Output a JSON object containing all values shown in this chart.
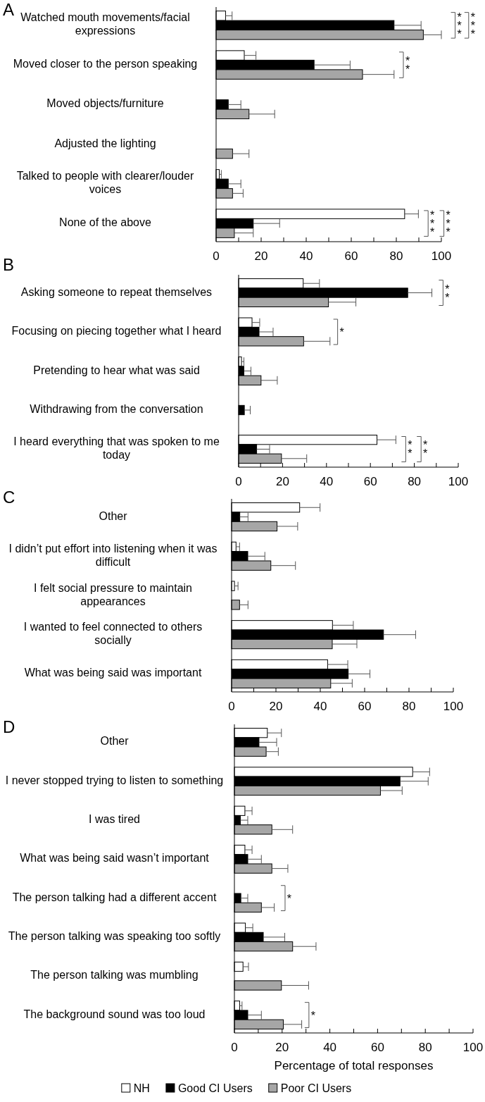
{
  "chart_data": [
    {
      "type": "bar",
      "orientation": "horizontal",
      "title": "A",
      "categories": [
        "Watched mouth movements/facial expressions",
        "Moved closer to the person speaking",
        "Moved objects/furniture",
        "Adjusted the lighting",
        "Talked to people with clearer/louder voices",
        "None of the above"
      ],
      "series": [
        {
          "color": "#ffffff",
          "values": [
            4.2,
            12.5,
            0,
            0,
            1.4,
            83.7
          ],
          "errors": [
            [
              4.2,
              7.1
            ],
            [
              12.5,
              17.7
            ],
            null,
            null,
            [
              1.4,
              2.3
            ],
            [
              83.7,
              89.8
            ]
          ]
        },
        {
          "color": "#000000",
          "values": [
            79,
            43.5,
            5.4,
            0,
            5.4,
            16.5
          ],
          "errors": [
            [
              79,
              91
            ],
            [
              43.5,
              59.5
            ],
            [
              5.4,
              11
            ],
            null,
            [
              5.4,
              11
            ],
            [
              16.5,
              28.2
            ]
          ]
        },
        {
          "color": "#a6a6a6",
          "values": [
            92,
            65,
            14.6,
            7.3,
            7.3,
            8.1
          ],
          "errors": [
            [
              92,
              100
            ],
            [
              65,
              79
            ],
            [
              14.6,
              26
            ],
            [
              7.3,
              14.6
            ],
            [
              7.3,
              12
            ],
            [
              8.1,
              16.5
            ]
          ]
        }
      ],
      "xlim": [
        0,
        100
      ],
      "xticks": [
        0,
        {
          "value": 10,
          "label": null
        },
        20,
        {
          "value": 30,
          "label": null
        },
        40,
        {
          "value": 50,
          "label": null
        },
        60,
        {
          "value": 70,
          "label": null
        },
        80,
        {
          "value": 90,
          "label": null
        },
        100
      ],
      "annotations": [
        "***",
        "***",
        "**",
        "***",
        "***"
      ]
    },
    {
      "type": "bar",
      "orientation": "horizontal",
      "title": "B",
      "categories": [
        "Asking someone to repeat themselves",
        "Focusing on piecing together what I heard",
        "Pretending to hear what was said",
        "Withdrawing from the conversation",
        "I heard everything that was spoken to me today"
      ],
      "series": [
        {
          "color": "#ffffff",
          "values": [
            29.4,
            6.1,
            1.3,
            0,
            63
          ],
          "errors": [
            [
              29.4,
              36.8
            ],
            [
              6.1,
              9.6
            ],
            [
              1.3,
              2.4
            ],
            null,
            [
              63,
              71.6
            ]
          ]
        },
        {
          "color": "#000000",
          "values": [
            77,
            9.3,
            2.4,
            2.6,
            8.2
          ],
          "errors": [
            [
              77,
              88
            ],
            [
              9.3,
              15.7
            ],
            [
              2.4,
              5.6
            ],
            [
              2.6,
              5.3
            ],
            [
              8.2,
              14.1
            ]
          ]
        },
        {
          "color": "#a6a6a6",
          "values": [
            40.9,
            29.6,
            10.2,
            0,
            19.5
          ],
          "errors": [
            [
              40.9,
              53.4
            ],
            [
              29.6,
              41.6
            ],
            [
              10.2,
              17.6
            ],
            null,
            [
              19.5,
              31
            ]
          ]
        }
      ],
      "xlim": [
        0,
        100
      ],
      "xticks": [
        0,
        {
          "value": 10,
          "label": null
        },
        20,
        {
          "value": 30,
          "label": null
        },
        40,
        {
          "value": 50,
          "label": null
        },
        60,
        {
          "value": 70,
          "label": null
        },
        80,
        {
          "value": 90,
          "label": null
        },
        100
      ],
      "annotations": [
        "**",
        "*",
        "**",
        "**"
      ]
    },
    {
      "type": "bar",
      "orientation": "horizontal",
      "title": "C",
      "categories": [
        "Other",
        "I didn’t put effort into listening when it was difficult",
        "I felt social pressure to maintain appearances",
        "I wanted to feel connected to others socially",
        "What was being said was important"
      ],
      "series": [
        {
          "color": "#ffffff",
          "values": [
            30.7,
            2,
            1.3,
            45.5,
            43.3
          ],
          "errors": [
            [
              30.7,
              39.9
            ],
            [
              2,
              3.6
            ],
            [
              1.3,
              2.9
            ],
            [
              45.5,
              54.9
            ],
            [
              43.3,
              52.4
            ]
          ]
        },
        {
          "color": "#000000",
          "values": [
            3.7,
            7.3,
            0,
            68.5,
            52.6
          ],
          "errors": [
            [
              3.7,
              7.4
            ],
            [
              7.3,
              15
            ],
            null,
            [
              68.5,
              83
            ],
            [
              52.6,
              62.4
            ]
          ]
        },
        {
          "color": "#a6a6a6",
          "values": [
            20.5,
            17.7,
            3.6,
            45.4,
            44.7
          ],
          "errors": [
            [
              20.5,
              29.8
            ],
            [
              17.7,
              28.8
            ],
            [
              3.6,
              7.4
            ],
            [
              45.4,
              56.5
            ],
            [
              44.7,
              54.4
            ]
          ]
        }
      ],
      "xlim": [
        0,
        100
      ],
      "xticks": [
        0,
        {
          "value": 10,
          "label": null
        },
        20,
        {
          "value": 30,
          "label": null
        },
        40,
        {
          "value": 50,
          "label": null
        },
        60,
        {
          "value": 70,
          "label": null
        },
        80,
        {
          "value": 90,
          "label": null
        },
        100
      ]
    },
    {
      "type": "bar",
      "orientation": "horizontal",
      "title": "D",
      "xlabel": "Percentage of total responses",
      "legend": "bottom",
      "categories": [
        "Other",
        "I never stopped trying to listen to something",
        "I was tired",
        "What was being said wasn’t important",
        "The person talking had a different accent",
        "The person talking was speaking too softly",
        "The person talking was mumbling",
        "The background sound was too loud"
      ],
      "series": [
        {
          "name": "NH",
          "color": "#ffffff",
          "values": [
            13.8,
            74.7,
            4.4,
            4.4,
            0,
            4.6,
            3.6,
            2.2
          ],
          "errors": [
            [
              13.8,
              19.7
            ],
            [
              74.7,
              81.8
            ],
            [
              4.4,
              7.4
            ],
            [
              4.4,
              7.4
            ],
            null,
            [
              4.6,
              7.7
            ],
            [
              3.6,
              5.9
            ],
            [
              2.2,
              3.2
            ]
          ]
        },
        {
          "name": "Good CI Users",
          "color": "#000000",
          "values": [
            10.3,
            69.4,
            2.5,
            5.6,
            2.7,
            12.1,
            0,
            5.6
          ],
          "errors": [
            [
              10.3,
              17.7
            ],
            [
              69.4,
              81.2
            ],
            [
              2.5,
              5.6
            ],
            [
              5.6,
              11.3
            ],
            [
              2.7,
              5.6
            ],
            [
              12.1,
              21.1
            ],
            null,
            [
              5.6,
              11.3
            ]
          ]
        },
        {
          "name": "Poor CI Users",
          "color": "#a6a6a6",
          "values": [
            13.3,
            61.2,
            15.7,
            15.7,
            11.3,
            24.4,
            19.7,
            20.5
          ],
          "errors": [
            [
              13.3,
              18.4
            ],
            [
              61.2,
              70.3
            ],
            [
              15.7,
              24.4
            ],
            [
              15.7,
              22.4
            ],
            [
              11.3,
              16.7
            ],
            [
              24.4,
              34.2
            ],
            [
              19.7,
              31.1
            ],
            [
              20.5,
              28.2
            ]
          ]
        }
      ],
      "xlim": [
        0,
        100
      ],
      "xticks": [
        0,
        {
          "value": 10,
          "label": null
        },
        20,
        {
          "value": 30,
          "label": null
        },
        40,
        {
          "value": 50,
          "label": null
        },
        60,
        {
          "value": 70,
          "label": null
        },
        80,
        {
          "value": 90,
          "label": null
        },
        100
      ],
      "annotations": [
        "*",
        "*"
      ]
    }
  ]
}
